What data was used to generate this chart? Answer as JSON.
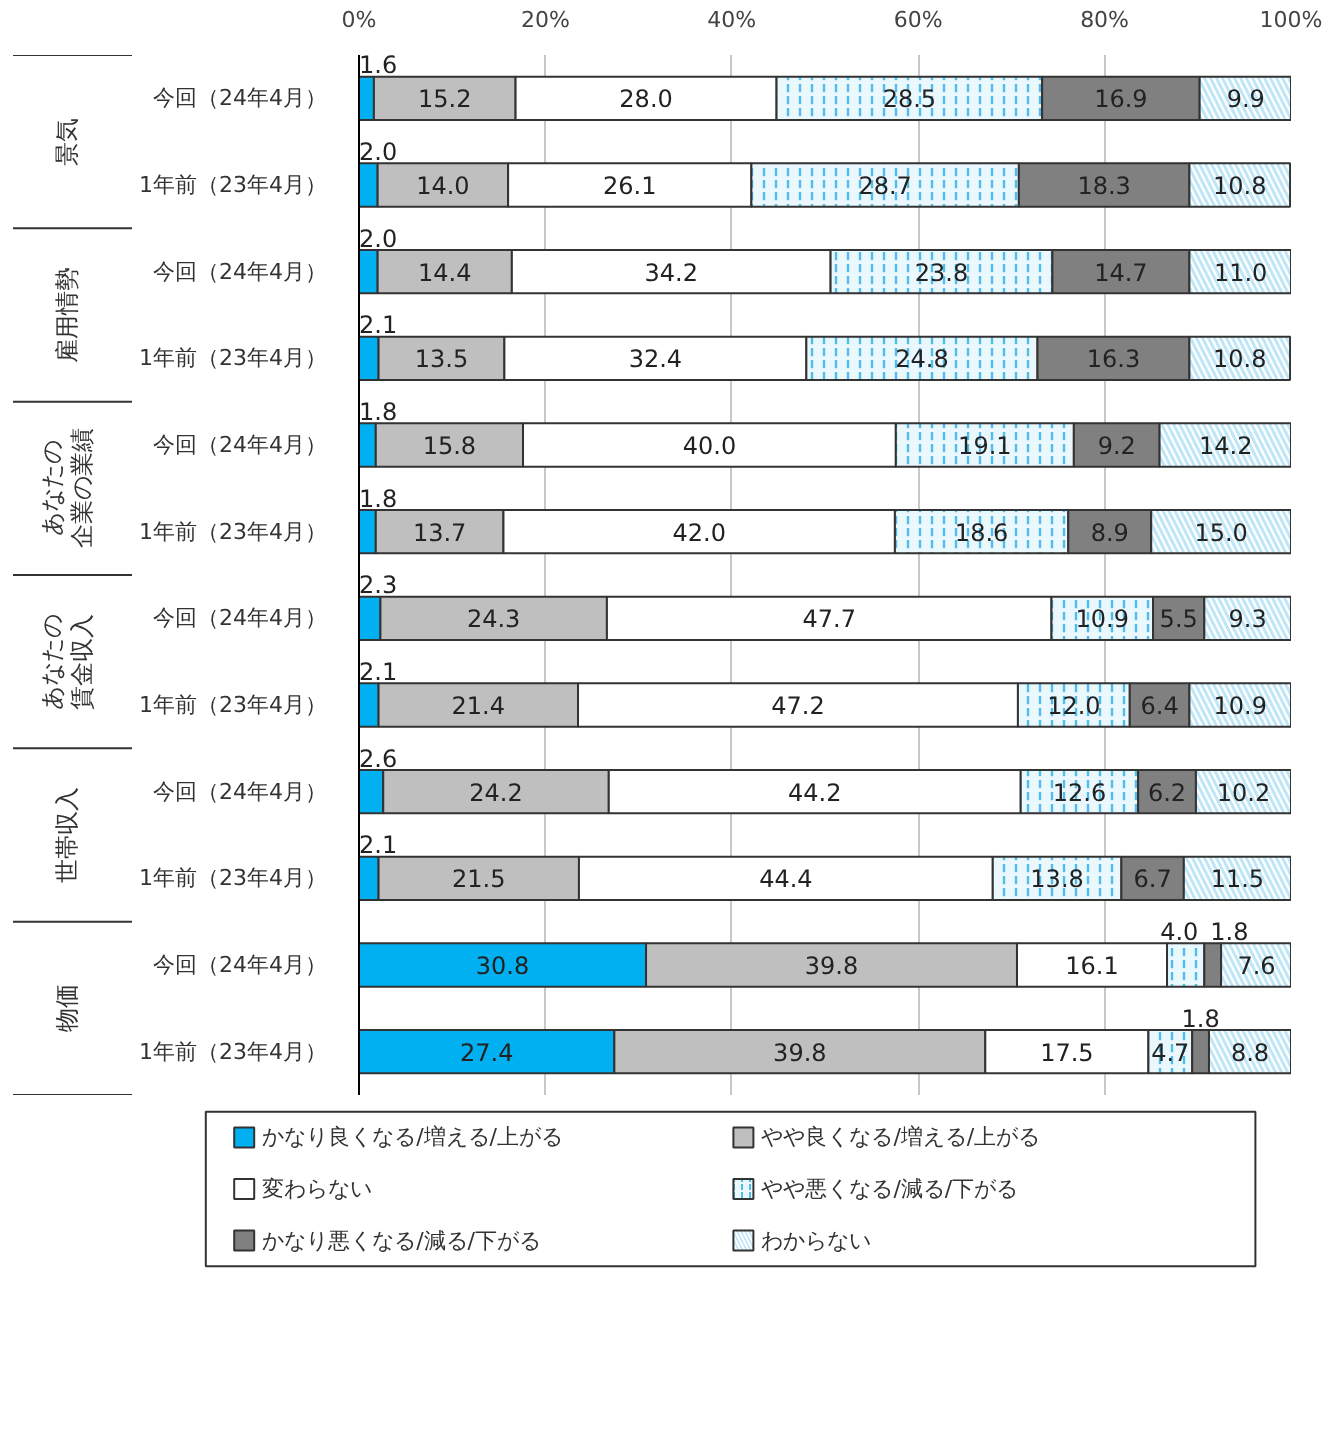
{
  "chart_data": {
    "type": "bar",
    "orientation": "horizontal",
    "stacked": true,
    "grid": "x",
    "legend": "bottom",
    "categories": [
      "今回（24年4月）",
      "1年前（23年4月）",
      "今回（24年4月）",
      "1年前（23年4月）",
      "今回（24年4月）",
      "1年前（23年4月）",
      "今回（24年4月）",
      "1年前（23年4月）",
      "今回（24年4月）",
      "1年前（23年4月）",
      "今回（24年4月）",
      "1年前（23年4月）"
    ],
    "annotations": [
      "景気",
      "雇用情勢",
      "あなたの企業の業績",
      "あなたの賃金収入",
      "世帯収入",
      "物価"
    ],
    "xlim": [
      0,
      100
    ],
    "xticks": [
      {
        "value": 0,
        "label": "0%"
      },
      {
        "value": 20,
        "label": "20%"
      },
      {
        "value": 40,
        "label": "40%"
      },
      {
        "value": 60,
        "label": "60%"
      },
      {
        "value": 80,
        "label": "80%"
      },
      {
        "value": 100,
        "label": "100%"
      }
    ],
    "series": [
      {
        "name": "かなり良くなる/増える/上がる",
        "color": "#00b0f0",
        "values": [
          1.6,
          2.0,
          2.0,
          2.1,
          1.8,
          1.8,
          2.3,
          2.1,
          2.6,
          2.1,
          30.8,
          27.4
        ],
        "value_labels": [
          "1.6",
          "2.0",
          "2.0",
          "2.1",
          "1.8",
          "1.8",
          "2.3",
          "2.1",
          "2.6",
          "2.1",
          "30.8",
          "27.4"
        ]
      },
      {
        "name": "やや良くなる/増える/上がる",
        "color": "#bfbfbf",
        "values": [
          15.2,
          14.0,
          14.4,
          13.5,
          15.8,
          13.7,
          24.3,
          21.4,
          24.2,
          21.5,
          39.8,
          39.8
        ],
        "value_labels": [
          "15.2",
          "14.0",
          "14.4",
          "13.5",
          "15.8",
          "13.7",
          "24.3",
          "21.4",
          "24.2",
          "21.5",
          "39.8",
          "39.8"
        ]
      },
      {
        "name": "変わらない",
        "color": "#ffffff",
        "values": [
          28.0,
          26.1,
          34.2,
          32.4,
          40.0,
          42.0,
          47.7,
          47.2,
          44.2,
          44.4,
          16.1,
          17.5
        ],
        "value_labels": [
          "28.0",
          "26.1",
          "34.2",
          "32.4",
          "40.0",
          "42.0",
          "47.7",
          "47.2",
          "44.2",
          "44.4",
          "16.1",
          "17.5"
        ]
      },
      {
        "name": "やや悪くなる/減る/下がる",
        "color": "#eaf7fd",
        "values": [
          28.5,
          28.7,
          23.8,
          24.8,
          19.1,
          18.6,
          10.9,
          12.0,
          12.6,
          13.8,
          4.0,
          4.7
        ],
        "value_labels": [
          "28.5",
          "28.7",
          "23.8",
          "24.8",
          "19.1",
          "18.6",
          "10.9",
          "12.0",
          "12.6",
          "13.8",
          "4.0",
          "4.7"
        ]
      },
      {
        "name": "かなり悪くなる/減る/下がる",
        "color": "#808080",
        "values": [
          16.9,
          18.3,
          14.7,
          16.3,
          9.2,
          8.9,
          5.5,
          6.4,
          6.2,
          6.7,
          1.8,
          1.8
        ],
        "value_labels": [
          "16.9",
          "18.3",
          "14.7",
          "16.3",
          "9.2",
          "8.9",
          "5.5",
          "6.4",
          "6.2",
          "6.7",
          "1.8",
          "1.8"
        ]
      },
      {
        "name": "わからない",
        "color": "#bfe6f7",
        "values": [
          9.9,
          10.8,
          11.0,
          10.8,
          14.2,
          15.0,
          9.3,
          10.9,
          10.2,
          11.5,
          7.6,
          8.8
        ],
        "value_labels": [
          "9.9",
          "10.8",
          "11.0",
          "10.8",
          "14.2",
          "15.0",
          "9.3",
          "10.9",
          "10.2",
          "11.5",
          "7.6",
          "8.8"
        ]
      }
    ]
  }
}
